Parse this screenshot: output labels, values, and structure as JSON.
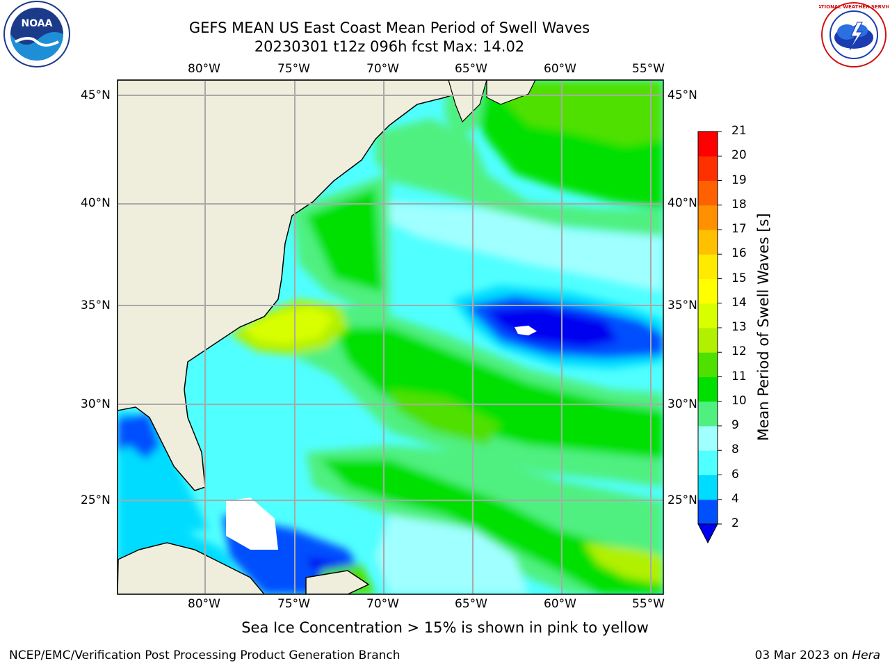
{
  "title": {
    "line1": "GEFS MEAN US East Coast Mean Period of Swell Waves",
    "line2": "20230301 t12z 096h fcst   Max: 14.02"
  },
  "map": {
    "lon_labels": [
      "80°W",
      "75°W",
      "70°W",
      "65°W",
      "60°W",
      "55°W"
    ],
    "lat_labels": [
      "45°N",
      "40°N",
      "35°N",
      "30°N",
      "25°N"
    ],
    "lon_range": [
      -85,
      -54.3
    ],
    "lat_range": [
      20.5,
      46.3
    ],
    "grid": true
  },
  "colorbar": {
    "title": "Mean Period of Swell Waves [s]",
    "ticks": [
      "2",
      "4",
      "6",
      "8",
      "9",
      "10",
      "11",
      "12",
      "13",
      "14",
      "15",
      "16",
      "17",
      "18",
      "19",
      "20",
      "21"
    ],
    "colors": [
      "#0050ff",
      "#00dcff",
      "#50ffff",
      "#a0ffff",
      "#50f080",
      "#00e000",
      "#50e000",
      "#b0f000",
      "#d8ff00",
      "#ffff00",
      "#ffea00",
      "#ffc000",
      "#ff9000",
      "#ff6000",
      "#ff3000",
      "#ff0000"
    ],
    "under_color": "#0000f0"
  },
  "note": "Sea Ice Concentration > 15% is shown in pink to yellow",
  "footer": {
    "left": "NCEP/EMC/Verification Post Processing Product Generation Branch",
    "date": "03 Mar 2023 on ",
    "machine": "Hera"
  },
  "logos": {
    "left": "noaa-logo",
    "right": "nws-logo",
    "noaa_text": "NOAA",
    "nws_text": "NATIONAL WEATHER SERVICE"
  }
}
